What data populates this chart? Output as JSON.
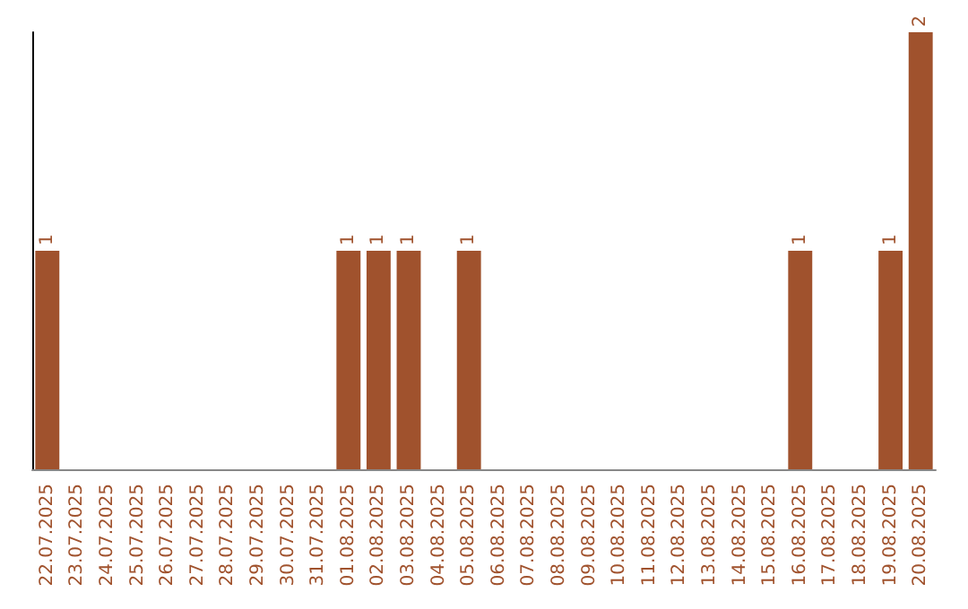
{
  "chart_data": {
    "type": "bar",
    "categories": [
      "22.07.2025",
      "23.07.2025",
      "24.07.2025",
      "25.07.2025",
      "26.07.2025",
      "27.07.2025",
      "28.07.2025",
      "29.07.2025",
      "30.07.2025",
      "31.07.2025",
      "01.08.2025",
      "02.08.2025",
      "03.08.2025",
      "04.08.2025",
      "05.08.2025",
      "06.08.2025",
      "07.08.2025",
      "08.08.2025",
      "09.08.2025",
      "10.08.2025",
      "11.08.2025",
      "12.08.2025",
      "13.08.2025",
      "14.08.2025",
      "15.08.2025",
      "16.08.2025",
      "17.08.2025",
      "18.08.2025",
      "19.08.2025",
      "20.08.2025"
    ],
    "values": [
      1,
      0,
      0,
      0,
      0,
      0,
      0,
      0,
      0,
      0,
      1,
      1,
      1,
      0,
      1,
      0,
      0,
      0,
      0,
      0,
      0,
      0,
      0,
      0,
      0,
      1,
      0,
      0,
      1,
      2
    ],
    "value_labels": [
      "1",
      null,
      null,
      null,
      null,
      null,
      null,
      null,
      null,
      null,
      "1",
      "1",
      "1",
      null,
      "1",
      null,
      null,
      null,
      null,
      null,
      null,
      null,
      null,
      null,
      null,
      "1",
      null,
      null,
      "1",
      "2"
    ],
    "color": "#a0522d",
    "grid": false,
    "tick_labels": "x"
  }
}
